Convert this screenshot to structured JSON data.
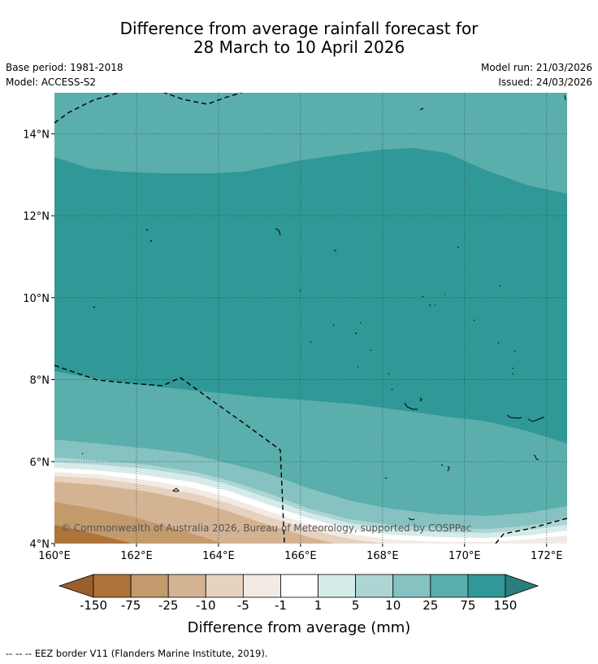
{
  "title": {
    "line1": "Difference from average rainfall forecast for",
    "line2": "28 March to 10 April 2026"
  },
  "meta": {
    "base_period": "Base period: 1981-2018",
    "model": "Model: ACCESS-S2",
    "model_run": "Model run: 21/03/2026",
    "issued": "Issued: 24/03/2026"
  },
  "map": {
    "lon_min": 160,
    "lon_max": 172.5,
    "lat_min": 4,
    "lat_max": 15,
    "x_ticks": [
      {
        "lon": 160,
        "label": "160°E"
      },
      {
        "lon": 162,
        "label": "162°E"
      },
      {
        "lon": 164,
        "label": "164°E"
      },
      {
        "lon": 166,
        "label": "166°E"
      },
      {
        "lon": 168,
        "label": "168°E"
      },
      {
        "lon": 170,
        "label": "170°E"
      },
      {
        "lon": 172,
        "label": "172°E"
      }
    ],
    "y_ticks": [
      {
        "lat": 4,
        "label": "4°N"
      },
      {
        "lat": 6,
        "label": "6°N"
      },
      {
        "lat": 8,
        "label": "8°N"
      },
      {
        "lat": 10,
        "label": "10°N"
      },
      {
        "lat": 12,
        "label": "12°N"
      },
      {
        "lat": 14,
        "label": "14°N"
      }
    ],
    "copyright": "© Commonwealth of Australia 2026, Bureau of Meteorology, supported by COSPPac"
  },
  "colorbar": {
    "title": "Difference from average (mm)",
    "labels": [
      "-150",
      "-75",
      "-25",
      "-10",
      "-5",
      "-1",
      "1",
      "5",
      "10",
      "25",
      "75",
      "150"
    ],
    "colors": {
      "lt_neg150": "#9a5f2c",
      "neg150_neg75": "#ad743a",
      "neg75_neg25": "#c39a6c",
      "neg25_neg10": "#d4b393",
      "neg10_neg5": "#e6d2be",
      "neg5_neg1": "#f2ebe4",
      "neg1_1": "#ffffff",
      "1_5": "#d6ebe9",
      "5_10": "#acd5d4",
      "10_25": "#85c2c1",
      "25_75": "#5aaeac",
      "75_150": "#309896",
      "gt_150": "#2b7e7b"
    }
  },
  "footnote": "-- -- -- EEZ border V11 (Flanders Marine Institute, 2019)."
}
